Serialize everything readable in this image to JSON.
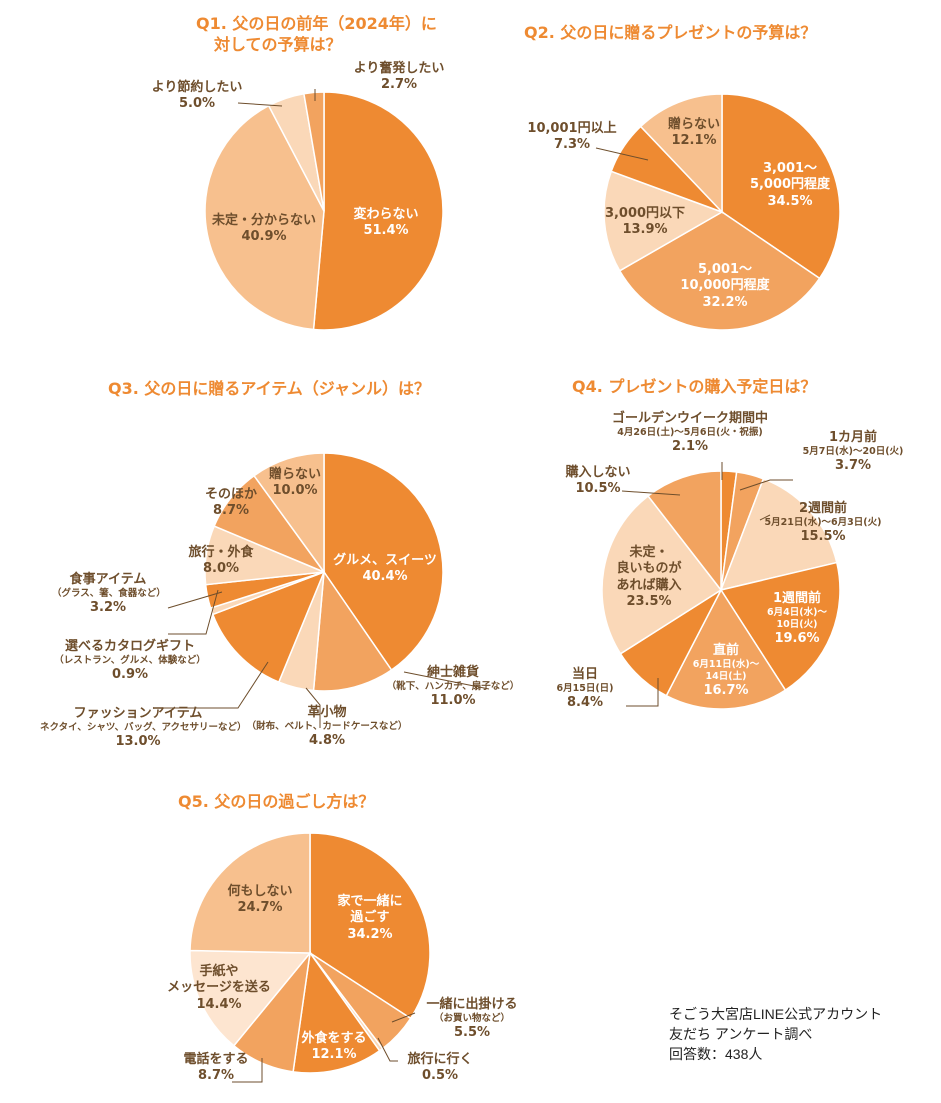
{
  "colors": {
    "title": "#ee8a32",
    "label_outside": "#6e4e2c",
    "label_inside": "#ffffff",
    "slice_dark": "#ee8a32",
    "slice_mid": "#f2a35f",
    "slice_light": "#f7c08e",
    "slice_pale": "#fad8b8",
    "leader_line": "#6e4e2c"
  },
  "chart_data": [
    {
      "type": "pie",
      "id": "q1",
      "title_num": "Q1.",
      "title_line1": "父の日の前年（2024年）に",
      "title_line2": "対しての予算は？",
      "slices": [
        {
          "label": "変わらない",
          "value": 51.4,
          "value_label": "51.4%",
          "color": "#ee8a32"
        },
        {
          "label": "未定・分からない",
          "value": 40.9,
          "value_label": "40.9%",
          "color": "#f7c08e"
        },
        {
          "label": "より節約したい",
          "value": 5.0,
          "value_label": "5.0%",
          "color": "#fad8b8"
        },
        {
          "label": "より奮発したい",
          "value": 2.7,
          "value_label": "2.7%",
          "color": "#f2a35f"
        }
      ]
    },
    {
      "type": "pie",
      "id": "q2",
      "title_num": "Q2.",
      "title_line1": "父の日に贈るプレゼントの予算は？",
      "slices": [
        {
          "label_line1": "3,001～",
          "label_line2": "5,000円程度",
          "value": 34.5,
          "value_label": "34.5%",
          "color": "#ee8a32"
        },
        {
          "label_line1": "5,001～",
          "label_line2": "10,000円程度",
          "value": 32.2,
          "value_label": "32.2%",
          "color": "#f2a35f"
        },
        {
          "label": "3,000円以下",
          "value": 13.9,
          "value_label": "13.9%",
          "color": "#fad8b8"
        },
        {
          "label": "10,001円以上",
          "value": 7.3,
          "value_label": "7.3%",
          "color": "#ee8a32"
        },
        {
          "label": "贈らない",
          "value": 12.1,
          "value_label": "12.1%",
          "color": "#f7c08e"
        }
      ]
    },
    {
      "type": "pie",
      "id": "q3",
      "title_num": "Q3.",
      "title_line1": "父の日に贈るアイテム（ジャンル）は？",
      "slices": [
        {
          "label": "グルメ、スイーツ",
          "value": 40.4,
          "value_label": "40.4%",
          "color": "#ee8a32"
        },
        {
          "label": "紳士雑貨",
          "sub": "（靴下、ハンカチ、扇子など）",
          "value": 11.0,
          "value_label": "11.0%",
          "color": "#f2a35f"
        },
        {
          "label": "革小物",
          "sub": "（財布、ベルト、カードケースなど）",
          "value": 4.8,
          "value_label": "4.8%",
          "color": "#fad8b8"
        },
        {
          "label": "ファッションアイテム",
          "sub": "ネクタイ、シャツ、バッグ、アクセサリーなど）",
          "value": 13.0,
          "value_label": "13.0%",
          "color": "#ee8a32"
        },
        {
          "label": "選べるカタログギフト",
          "sub": "（レストラン、グルメ、体験など）",
          "value": 0.9,
          "value_label": "0.9%",
          "color": "#fad8b8"
        },
        {
          "label": "食事アイテム",
          "sub": "（グラス、箸、食器など）",
          "value": 3.2,
          "value_label": "3.2%",
          "color": "#ee8a32"
        },
        {
          "label": "旅行・外食",
          "value": 8.0,
          "value_label": "8.0%",
          "color": "#fad8b8"
        },
        {
          "label": "そのほか",
          "value": 8.7,
          "value_label": "8.7%",
          "color": "#f2a35f"
        },
        {
          "label": "贈らない",
          "value": 10.0,
          "value_label": "10.0%",
          "color": "#f7c08e"
        }
      ]
    },
    {
      "type": "pie",
      "id": "q4",
      "title_num": "Q4.",
      "title_line1": "プレゼントの購入予定日は？",
      "slices": [
        {
          "label": "ゴールデンウイーク期間中",
          "sub": "4月26日(土)～5月6日(火・祝振)",
          "value": 2.1,
          "value_label": "2.1%",
          "color": "#ee8a32"
        },
        {
          "label": "1カ月前",
          "sub": "5月7日(水)～20日(火)",
          "value": 3.7,
          "value_label": "3.7%",
          "color": "#f2a35f"
        },
        {
          "label": "2週間前",
          "sub": "5月21日(水)～6月3日(火)",
          "value": 15.5,
          "value_label": "15.5%",
          "color": "#fad8b8"
        },
        {
          "label": "1週間前",
          "sub_line1": "6月4日(水)～",
          "sub_line2": "10日(火)",
          "value": 19.6,
          "value_label": "19.6%",
          "color": "#ee8a32"
        },
        {
          "label": "直前",
          "sub_line1": "6月11日(水)～",
          "sub_line2": "14日(土)",
          "value": 16.7,
          "value_label": "16.7%",
          "color": "#f2a35f"
        },
        {
          "label": "当日",
          "sub": "6月15日(日)",
          "value": 8.4,
          "value_label": "8.4%",
          "color": "#ee8a32"
        },
        {
          "label_line1": "未定・",
          "label_line2": "良いものが",
          "label_line3": "あれば購入",
          "value": 23.5,
          "value_label": "23.5%",
          "color": "#fad8b8"
        },
        {
          "label": "購入しない",
          "value": 10.5,
          "value_label": "10.5%",
          "color": "#f2a35f"
        }
      ]
    },
    {
      "type": "pie",
      "id": "q5",
      "title_num": "Q5.",
      "title_line1": "父の日の過ごし方は？",
      "slices": [
        {
          "label_line1": "家で一緒に",
          "label_line2": "過ごす",
          "value": 34.2,
          "value_label": "34.2%",
          "color": "#ee8a32"
        },
        {
          "label": "一緒に出掛ける",
          "sub": "（お買い物など）",
          "value": 5.5,
          "value_label": "5.5%",
          "color": "#f2a35f"
        },
        {
          "label": "旅行に行く",
          "value": 0.5,
          "value_label": "0.5%",
          "color": "#fad8b8"
        },
        {
          "label": "外食をする",
          "value": 12.1,
          "value_label": "12.1%",
          "color": "#ee8a32"
        },
        {
          "label": "電話をする",
          "value": 8.7,
          "value_label": "8.7%",
          "color": "#f2a35f"
        },
        {
          "label_line1": "手紙や",
          "label_line2": "メッセージを送る",
          "value": 14.4,
          "value_label": "14.4%",
          "color": "#fde5d0"
        },
        {
          "label": "何もしない",
          "value": 24.7,
          "value_label": "24.7%",
          "color": "#f7c08e"
        }
      ]
    }
  ],
  "footer": {
    "line1": "そごう大宮店LINE公式アカウント",
    "line2": "友だち アンケート調べ",
    "line3": "回答数：438人"
  }
}
